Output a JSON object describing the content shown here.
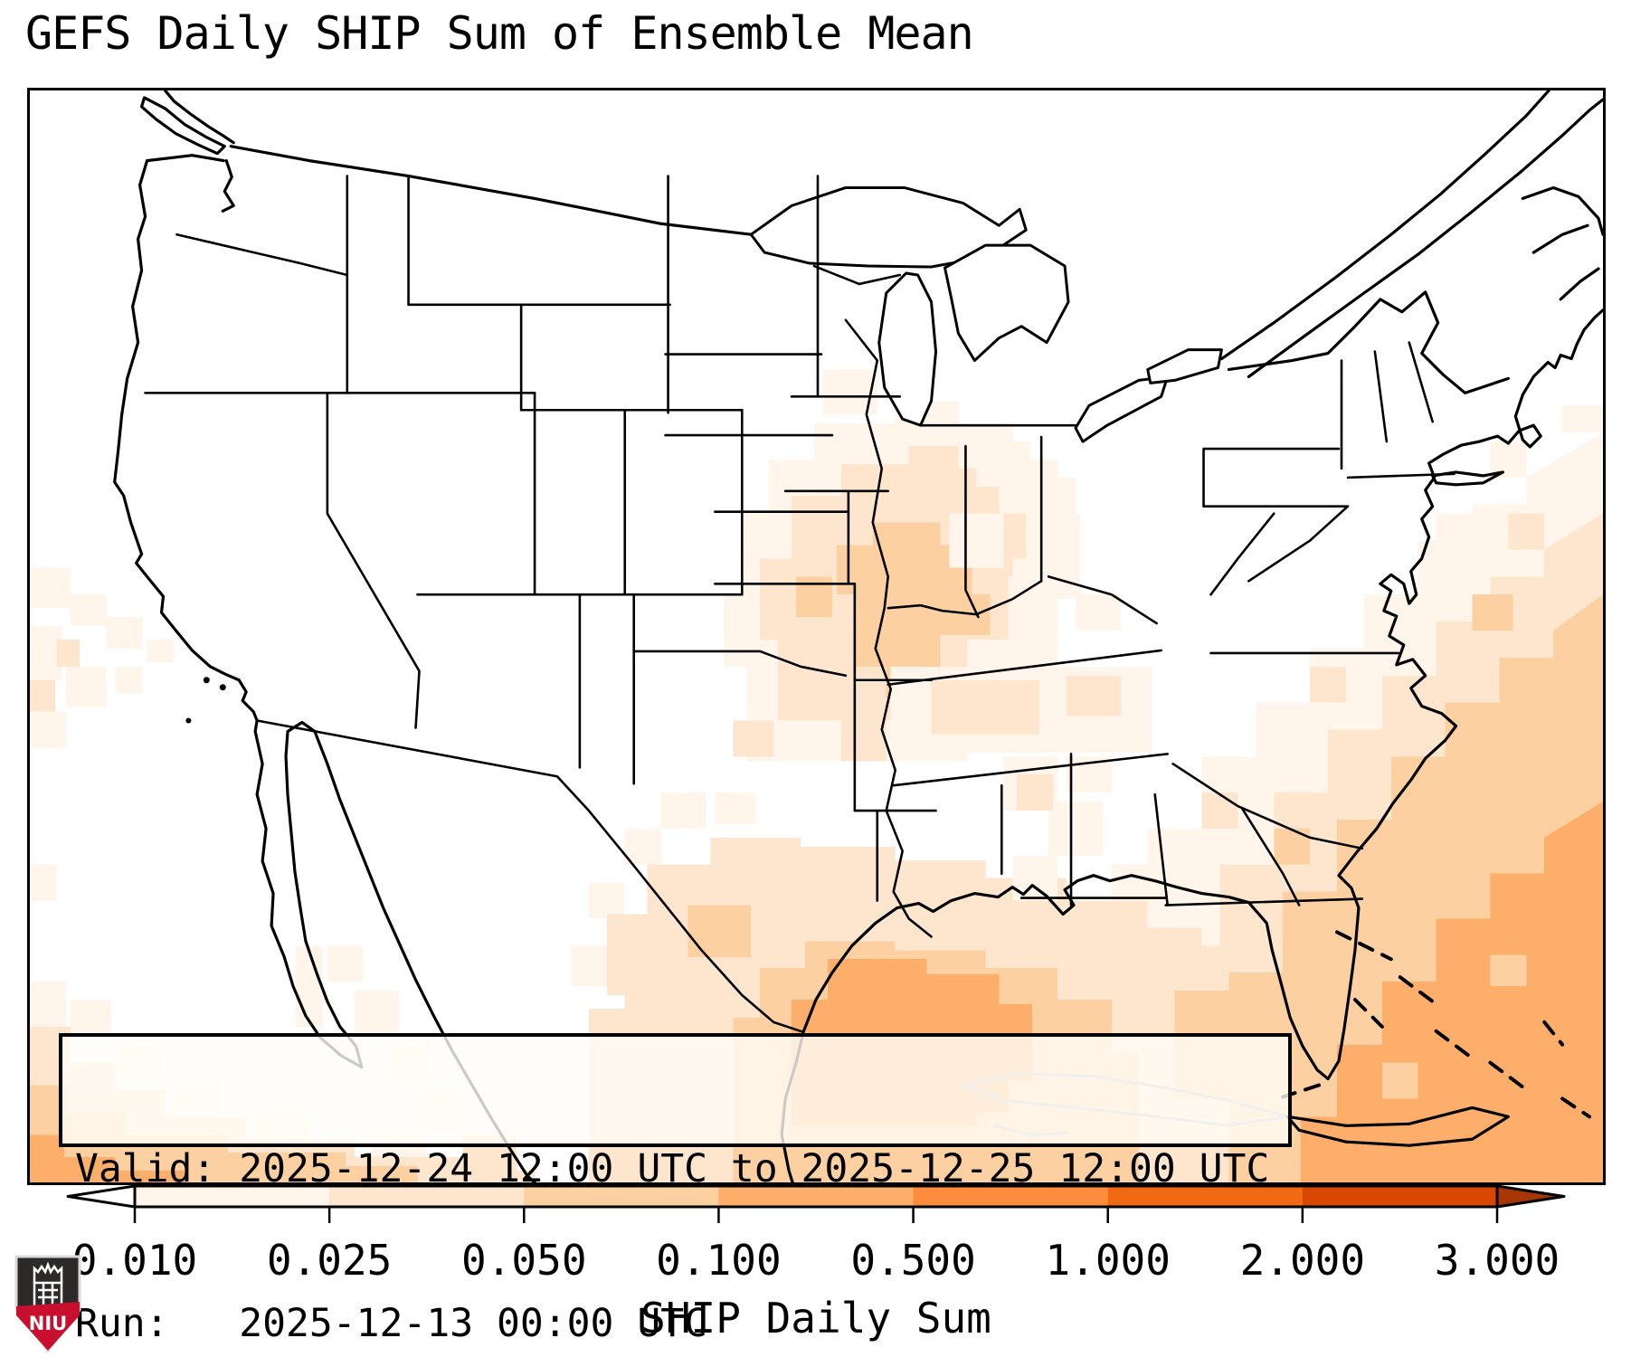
{
  "title": "GEFS Daily SHIP Sum of Ensemble Mean",
  "annotation": {
    "line1": "Valid: 2025-12-24 12:00 UTC to 2025-12-25 12:00 UTC",
    "line2": "Run:   2025-12-13 00:00 UTC"
  },
  "colorbar": {
    "label": "SHIP Daily Sum",
    "ticks": [
      "0.010",
      "0.025",
      "0.050",
      "0.100",
      "0.500",
      "1.000",
      "2.000",
      "3.000"
    ],
    "segment_colors": [
      "#fff5eb",
      "#fee6ce",
      "#fdd0a2",
      "#fdae6b",
      "#fd8d3c",
      "#f16913",
      "#d94801"
    ],
    "under_arrow_color": "#ffffff",
    "over_arrow_color": "#a63603",
    "outline_color": "#000000"
  },
  "map_shading_levels": {
    "0.010": "#fff5eb",
    "0.025": "#fee6ce",
    "0.050": "#fdd0a2",
    "0.100": "#fdae6b",
    "0.500": "#fd8d3c",
    "1.000": "#f16913",
    "2.000": "#d94801",
    "3.000": "#a63603"
  },
  "logo": {
    "label": "NIU",
    "shield_dark": "#2b2a29",
    "shield_red": "#c8102e",
    "shield_border": "#d9d9d9"
  }
}
